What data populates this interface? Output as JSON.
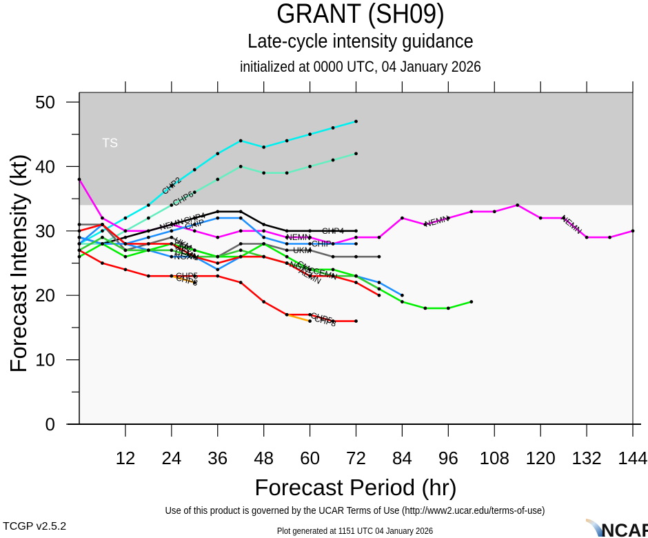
{
  "header": {
    "title": "GRANT (SH09)",
    "subtitle": "Late-cycle intensity guidance",
    "init_line": "initialized at 0000 UTC, 04 January 2026"
  },
  "footer": {
    "terms": "Use of this product is governed by the UCAR Terms of Use (http://www2.ucar.edu/terms-of-use)",
    "version": "TCGP v2.5.2",
    "generated": "Plot generated at 1151 UTC   04 January 2026",
    "logo_text": "NCAR"
  },
  "chart_data": {
    "type": "line",
    "title": "GRANT (SH09)",
    "xlabel": "Forecast Period (hr)",
    "ylabel": "Forecast Intensity (kt)",
    "xlim": [
      0,
      144
    ],
    "ylim": [
      0,
      51.5
    ],
    "xticks": [
      12,
      24,
      36,
      48,
      60,
      72,
      84,
      96,
      108,
      120,
      132,
      144
    ],
    "yticks": [
      0,
      10,
      20,
      30,
      40,
      50
    ],
    "grid": false,
    "bands": [
      {
        "label": "TS",
        "from": 34,
        "to": 51.5,
        "color": "#cccccc"
      },
      {
        "label": "",
        "from": 0,
        "to": 34,
        "color": "#f9f9f9"
      }
    ],
    "series": [
      {
        "name": "CHP2",
        "color": "#00f0f0",
        "x": [
          0,
          6,
          12,
          18,
          24,
          30,
          36,
          42,
          48,
          54,
          60,
          66,
          72
        ],
        "values": [
          28,
          30,
          32,
          34,
          37,
          39.5,
          42,
          44,
          43,
          44,
          45,
          46,
          47
        ],
        "label_at": 24
      },
      {
        "name": "CHP6",
        "color": "#66eec0",
        "x": [
          0,
          6,
          12,
          18,
          24,
          30,
          36,
          42,
          48,
          54,
          60,
          66,
          72
        ],
        "values": [
          28,
          28,
          30,
          32,
          34,
          36,
          38,
          40,
          39,
          39,
          40,
          41,
          42
        ],
        "label_at": 27
      },
      {
        "name": "NEMN",
        "color": "#ff00ff",
        "x": [
          0,
          6,
          12,
          18,
          24,
          30,
          36,
          42,
          48,
          54,
          60,
          66,
          72,
          78,
          84,
          90,
          96,
          102,
          108,
          114,
          120,
          126,
          132,
          138,
          144
        ],
        "values": [
          38,
          32,
          30,
          30,
          31,
          30,
          29,
          30,
          30,
          29,
          29,
          28,
          29,
          29,
          32,
          31,
          32,
          33,
          33,
          34,
          32,
          32,
          29,
          29,
          30
        ],
        "label_at": [
          24,
          57,
          93,
          128
        ]
      },
      {
        "name": "CHP4",
        "color": "#000000",
        "x": [
          0,
          6,
          12,
          18,
          24,
          30,
          36,
          42,
          48,
          54,
          60,
          66,
          72
        ],
        "values": [
          29,
          28,
          29,
          30,
          31,
          32,
          33,
          33,
          31,
          30,
          30,
          30,
          30
        ],
        "label_at": [
          30,
          66
        ]
      },
      {
        "name": "CHIP",
        "color": "#1e90ff",
        "x": [
          0,
          6,
          12,
          18,
          24,
          30,
          36,
          42,
          48,
          54,
          60,
          66,
          72
        ],
        "values": [
          28,
          31,
          28,
          29,
          30,
          31,
          32,
          32,
          29,
          28,
          28,
          28,
          28
        ],
        "label_at": [
          30,
          63
        ]
      },
      {
        "name": "UKM",
        "color": "#666666",
        "x": [
          0,
          6,
          12,
          18,
          24,
          30,
          36,
          42,
          48,
          54,
          60,
          66,
          72,
          78
        ],
        "values": [
          31,
          31,
          27,
          28,
          29,
          27,
          26,
          28,
          28,
          27,
          27,
          26,
          26,
          26
        ],
        "label_at": [
          27,
          58
        ]
      },
      {
        "name": "NGX",
        "color": "#1e90ff",
        "x": [
          0,
          6,
          12,
          18,
          24,
          30,
          36,
          42,
          48,
          54,
          60,
          66,
          72,
          78,
          84
        ],
        "values": [
          29,
          28,
          28,
          27,
          26,
          26,
          24,
          26,
          26,
          25,
          24,
          23,
          23,
          22,
          20
        ],
        "label_at": [
          27,
          57
        ]
      },
      {
        "name": "CMC",
        "color": "#00ee00",
        "x": [
          0,
          6,
          12,
          18,
          24,
          30,
          36,
          42,
          48,
          54,
          60,
          66,
          72,
          78,
          84,
          90,
          96,
          102
        ],
        "values": [
          26,
          28,
          26,
          27,
          28,
          27,
          26,
          26,
          28,
          26,
          24,
          24,
          23,
          21,
          19,
          18,
          18,
          19
        ],
        "label_at": [
          27,
          59
        ]
      },
      {
        "name": "CEMN",
        "color": "#33cc33",
        "x": [
          0,
          6,
          12,
          18,
          24,
          30,
          36,
          42,
          48,
          54,
          60,
          66,
          72,
          78
        ],
        "values": [
          27,
          29,
          27,
          27,
          27,
          26,
          26,
          27,
          26,
          25,
          24,
          23,
          23,
          21
        ],
        "label_at": [
          28,
          64
        ]
      },
      {
        "name": "AEMN",
        "color": "#ff0000",
        "x": [
          0,
          6,
          12,
          18,
          24,
          30,
          36,
          42,
          48,
          54,
          60,
          66,
          72,
          78
        ],
        "values": [
          30,
          31,
          28,
          28,
          28,
          26,
          25,
          26,
          26,
          25,
          23,
          23,
          22,
          20
        ],
        "label_at": [
          28,
          60
        ]
      },
      {
        "name": "CHP5",
        "color": "#ff0000",
        "x": [
          0,
          6,
          12,
          18,
          24,
          30,
          36,
          42,
          48,
          54,
          60,
          66,
          72
        ],
        "values": [
          27,
          25,
          24,
          23,
          23,
          23,
          23,
          22,
          19,
          17,
          17,
          16,
          16
        ],
        "label_at": [
          28,
          63
        ]
      },
      {
        "name": "CHP3",
        "color": "#ffa500",
        "x": [
          24,
          30
        ],
        "values": [
          23,
          22
        ],
        "label_at": [
          28
        ]
      },
      {
        "name": "CHP8",
        "color": "#ffa500",
        "x": [
          54,
          60
        ],
        "values": [
          17,
          16
        ],
        "label_at": [
          64
        ]
      }
    ],
    "annotations": [
      {
        "text": "TS",
        "x": 8,
        "y": 43
      }
    ]
  }
}
